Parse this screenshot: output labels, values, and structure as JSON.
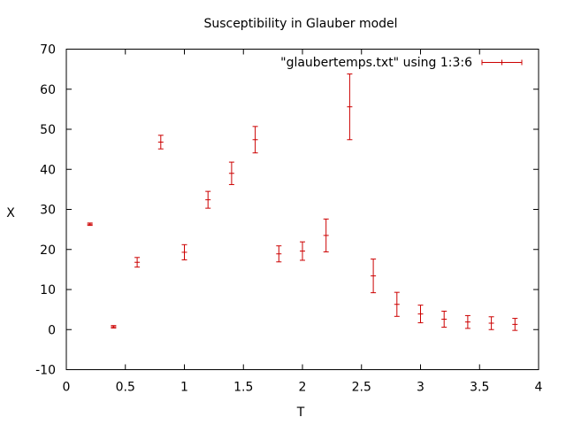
{
  "chart_data": {
    "type": "scatter",
    "title": "Susceptibility in Glauber model",
    "xlabel": "T",
    "ylabel": "X",
    "xlim": [
      0,
      4
    ],
    "ylim": [
      -10,
      70
    ],
    "x_ticks": [
      0,
      0.5,
      1,
      1.5,
      2,
      2.5,
      3,
      3.5,
      4
    ],
    "x_tick_labels": [
      "0",
      "0.5",
      "1",
      "1.5",
      "2",
      "2.5",
      "3",
      "3.5",
      "4"
    ],
    "y_ticks": [
      -10,
      0,
      10,
      20,
      30,
      40,
      50,
      60,
      70
    ],
    "y_tick_labels": [
      "-10",
      "0",
      "10",
      "20",
      "30",
      "40",
      "50",
      "60",
      "70"
    ],
    "grid": false,
    "legend_position": "top-right",
    "series": [
      {
        "name": "\"glaubertemps.txt\" using 1:3:6",
        "color": "#cc0000",
        "marker": "errorbar",
        "x": [
          0.2,
          0.4,
          0.6,
          0.8,
          1.0,
          1.2,
          1.4,
          1.6,
          1.8,
          2.0,
          2.2,
          2.4,
          2.6,
          2.8,
          3.0,
          3.2,
          3.4,
          3.6,
          3.8
        ],
        "y": [
          26.3,
          0.7,
          16.8,
          46.8,
          19.3,
          32.4,
          39.0,
          47.4,
          18.9,
          19.6,
          23.5,
          55.6,
          13.4,
          6.3,
          3.9,
          2.6,
          1.9,
          1.6,
          1.3
        ],
        "err": [
          0.3,
          0.3,
          1.2,
          1.7,
          1.9,
          2.1,
          2.8,
          3.3,
          2.0,
          2.3,
          4.1,
          8.2,
          4.2,
          3.0,
          2.2,
          2.0,
          1.6,
          1.6,
          1.5
        ]
      }
    ]
  }
}
